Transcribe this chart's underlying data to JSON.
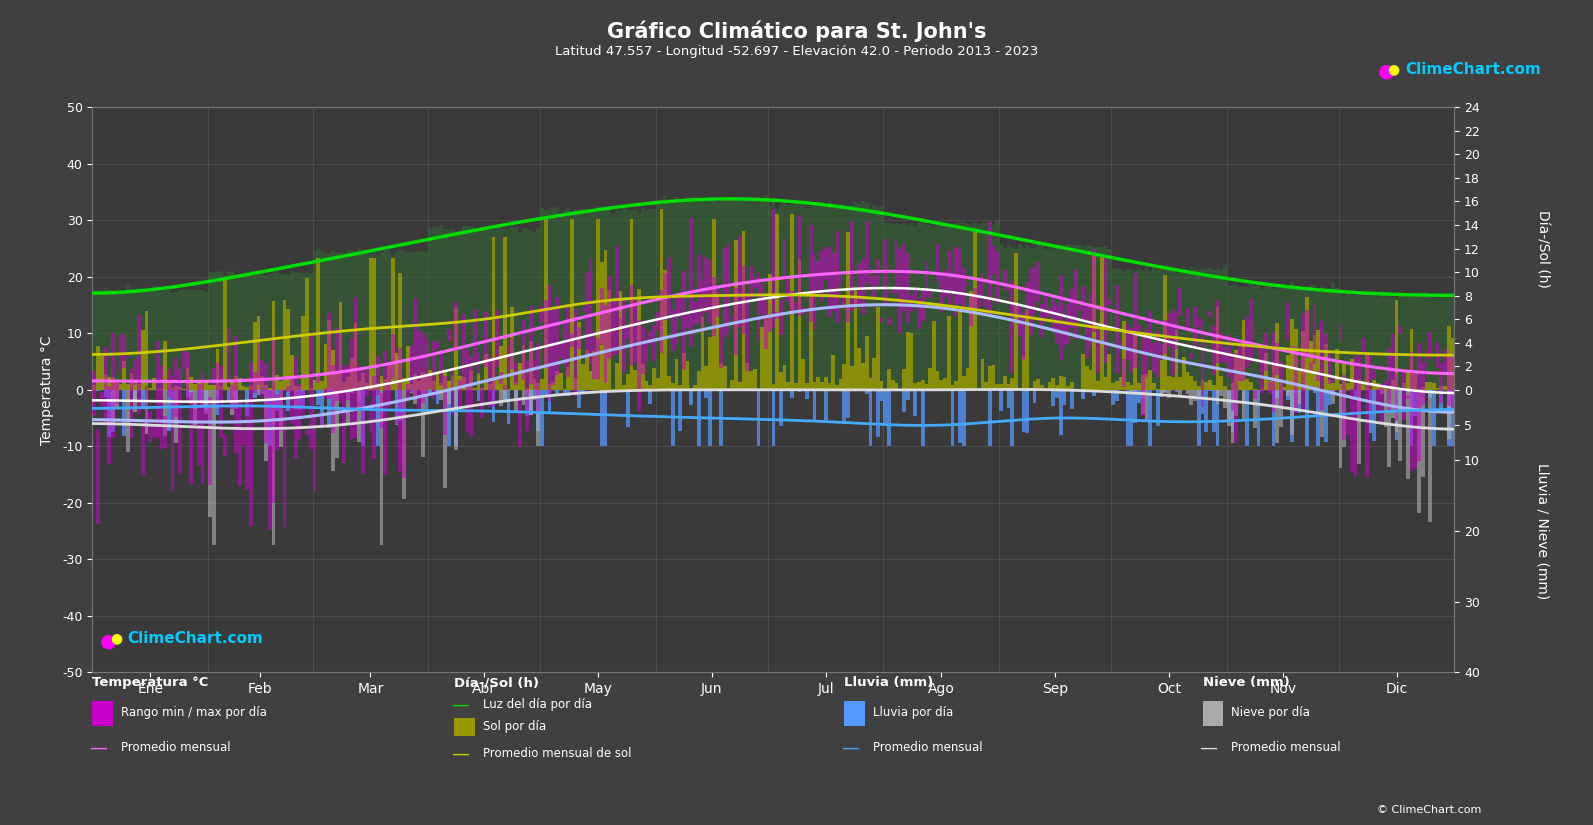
{
  "title": "Gráfico Climático para St. John's",
  "subtitle": "Latitud 47.557 - Longitud -52.697 - Elevación 42.0 - Periodo 2013 - 2023",
  "months": [
    "Ene",
    "Feb",
    "Mar",
    "Abr",
    "May",
    "Jun",
    "Jul",
    "Ago",
    "Sep",
    "Oct",
    "Nov",
    "Dic"
  ],
  "days_per_month": [
    31,
    28,
    31,
    30,
    31,
    30,
    31,
    31,
    30,
    31,
    30,
    31
  ],
  "temp_ylim": [
    -50,
    50
  ],
  "temp_avg_max": [
    1.5,
    1.8,
    4.0,
    8.5,
    13.5,
    18.0,
    20.5,
    20.5,
    16.5,
    11.5,
    7.0,
    3.5
  ],
  "temp_avg_min": [
    -5.5,
    -5.5,
    -3.0,
    1.5,
    6.5,
    11.0,
    14.5,
    14.5,
    10.5,
    5.5,
    1.5,
    -3.0
  ],
  "temp_record_max": [
    14,
    14,
    18,
    23,
    28,
    32,
    34,
    33,
    27,
    22,
    17,
    14
  ],
  "temp_record_min": [
    -25,
    -26,
    -22,
    -12,
    -4,
    2,
    7,
    7,
    1,
    -5,
    -10,
    -21
  ],
  "daylight_avg": [
    8.5,
    10.0,
    11.8,
    13.7,
    15.3,
    16.2,
    15.7,
    14.1,
    12.2,
    10.3,
    8.8,
    8.1
  ],
  "sunshine_avg": [
    3.2,
    4.2,
    5.2,
    6.0,
    7.5,
    8.0,
    8.0,
    7.2,
    5.8,
    4.5,
    3.5,
    3.0
  ],
  "rain_avg_mm": [
    2.5,
    2.3,
    2.8,
    3.0,
    3.5,
    4.0,
    4.5,
    5.0,
    4.0,
    4.5,
    4.0,
    3.0
  ],
  "snow_avg_mm": [
    5.0,
    5.5,
    4.5,
    2.0,
    0.3,
    0.0,
    0.0,
    0.0,
    0.0,
    0.8,
    2.5,
    5.0
  ],
  "rain_daily_max_scale": 8.0,
  "snow_daily_max_scale": 22.0,
  "sun_scale": 2.083,
  "rain_scale": 1.25,
  "colors": {
    "bg": "#404040",
    "bg_plot": "#3a3a3a",
    "temp_bar": "#cc00cc",
    "temp_line_max": "#ff66ff",
    "temp_line_min": "#aabbff",
    "white_line": "#ffffff",
    "daylight_green": "#00dd00",
    "sunshine_dark": "#888800",
    "sunshine_bright": "#cccc00",
    "rain_blue": "#5599ff",
    "rain_line": "#44aaff",
    "snow_gray": "#aaaaaa",
    "snow_line": "#dddddd",
    "grid": "#666666",
    "logo_cyan": "#00ccff"
  },
  "random_seed": 123
}
